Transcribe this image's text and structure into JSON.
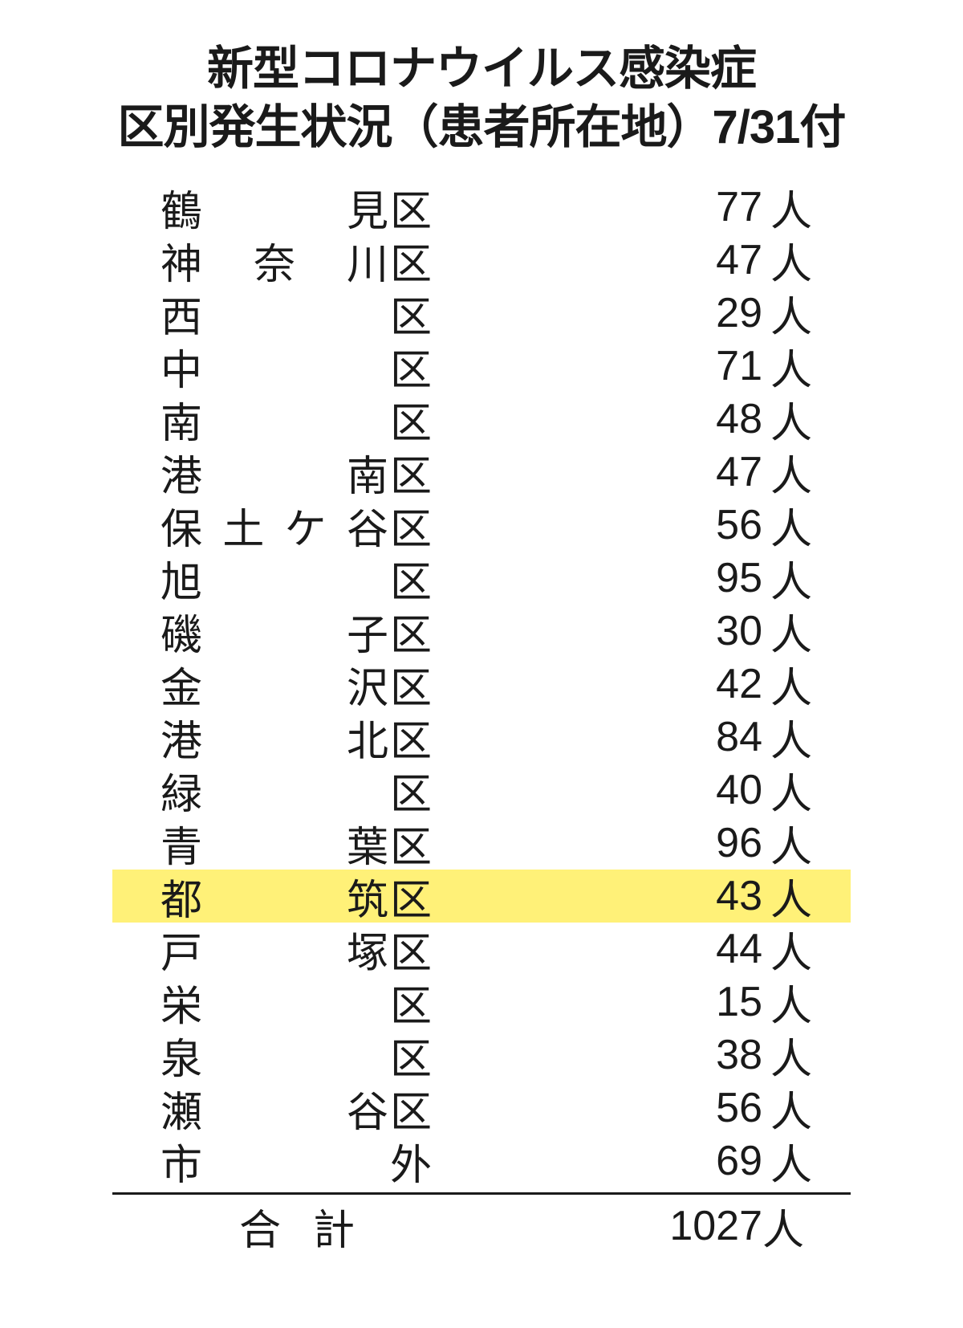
{
  "title": {
    "line1": "新型コロナウイルス感染症",
    "line2": "区別発生状況（患者所在地）7/31付"
  },
  "table": {
    "type": "table",
    "unit": "人",
    "highlight_color": "#fff178",
    "text_color": "#1a1a1a",
    "background_color": "#ffffff",
    "font_size_title": 58,
    "font_size_body": 52,
    "rows": [
      {
        "ward_prefix": "鶴見",
        "ward_suffix": "区",
        "value": 77,
        "highlighted": false
      },
      {
        "ward_prefix": "神奈川",
        "ward_suffix": "区",
        "value": 47,
        "highlighted": false
      },
      {
        "ward_prefix": "西",
        "ward_suffix": "区",
        "value": 29,
        "highlighted": false
      },
      {
        "ward_prefix": "中",
        "ward_suffix": "区",
        "value": 71,
        "highlighted": false
      },
      {
        "ward_prefix": "南",
        "ward_suffix": "区",
        "value": 48,
        "highlighted": false
      },
      {
        "ward_prefix": "港南",
        "ward_suffix": "区",
        "value": 47,
        "highlighted": false
      },
      {
        "ward_prefix": "保土ケ谷",
        "ward_suffix": "区",
        "value": 56,
        "highlighted": false
      },
      {
        "ward_prefix": "旭",
        "ward_suffix": "区",
        "value": 95,
        "highlighted": false
      },
      {
        "ward_prefix": "磯子",
        "ward_suffix": "区",
        "value": 30,
        "highlighted": false
      },
      {
        "ward_prefix": "金沢",
        "ward_suffix": "区",
        "value": 42,
        "highlighted": false
      },
      {
        "ward_prefix": "港北",
        "ward_suffix": "区",
        "value": 84,
        "highlighted": false
      },
      {
        "ward_prefix": "緑",
        "ward_suffix": "区",
        "value": 40,
        "highlighted": false
      },
      {
        "ward_prefix": "青葉",
        "ward_suffix": "区",
        "value": 96,
        "highlighted": false
      },
      {
        "ward_prefix": "都筑",
        "ward_suffix": "区",
        "value": 43,
        "highlighted": true
      },
      {
        "ward_prefix": "戸塚",
        "ward_suffix": "区",
        "value": 44,
        "highlighted": false
      },
      {
        "ward_prefix": "栄",
        "ward_suffix": "区",
        "value": 15,
        "highlighted": false
      },
      {
        "ward_prefix": "泉",
        "ward_suffix": "区",
        "value": 38,
        "highlighted": false
      },
      {
        "ward_prefix": "瀬谷",
        "ward_suffix": "区",
        "value": 56,
        "highlighted": false
      },
      {
        "ward_prefix": "市",
        "ward_suffix": "外",
        "value": 69,
        "highlighted": false
      }
    ],
    "total": {
      "label": "合計",
      "value": 1027
    }
  }
}
